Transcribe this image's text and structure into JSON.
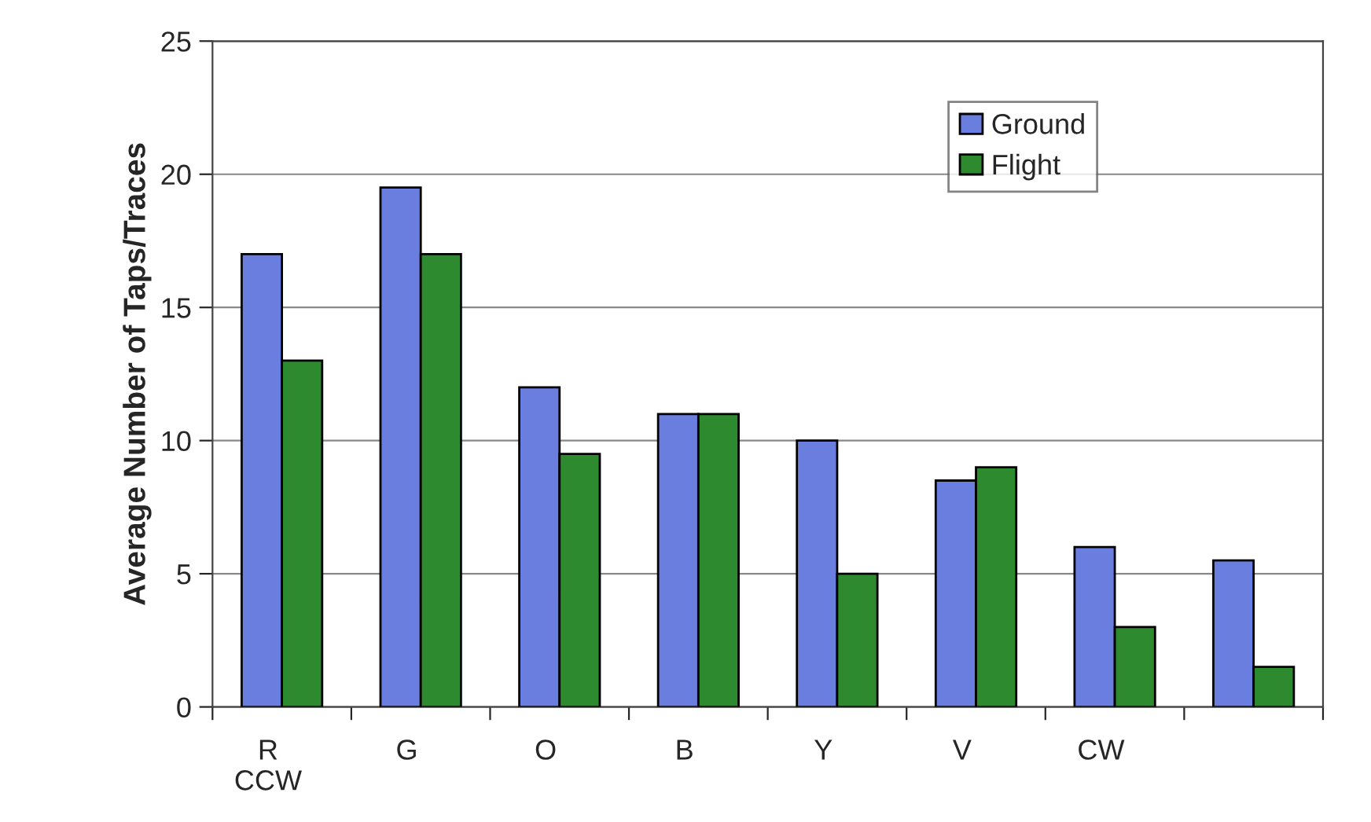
{
  "chart_data": {
    "type": "bar",
    "ylabel": "Average Number of Taps/Traces",
    "categories": [
      "R\nCCW",
      "G",
      "O",
      "B",
      "Y",
      "V",
      "CW",
      null
    ],
    "series": [
      {
        "name": "Ground",
        "color": "#6a7ee0",
        "values": [
          17,
          19.5,
          12,
          11,
          10,
          8.5,
          6,
          5.5
        ]
      },
      {
        "name": "Flight",
        "color": "#2e8a2e",
        "values": [
          13,
          17,
          9.5,
          11,
          5,
          9,
          3,
          1.5
        ]
      }
    ],
    "ylim": [
      0,
      25
    ],
    "yticks": [
      0,
      5,
      10,
      15,
      20,
      25
    ],
    "grid": "y",
    "legend": "top right"
  }
}
